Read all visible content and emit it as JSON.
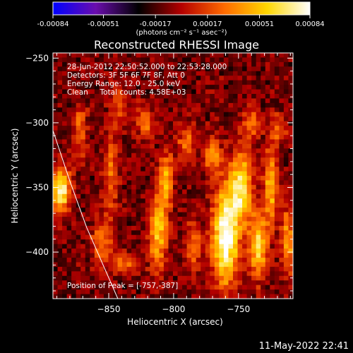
{
  "chart_data": {
    "type": "heatmap",
    "title": "Reconstructed RHESSI Image",
    "xlabel": "Heliocentric X (arcsec)",
    "ylabel": "Heliocentric Y (arcsec)",
    "xlim": [
      -893,
      -708
    ],
    "ylim": [
      -436,
      -246
    ],
    "x_ticks": [
      -850,
      -800,
      -750
    ],
    "y_ticks": [
      -250,
      -300,
      -350,
      -400
    ],
    "colorbar": {
      "range": [
        -0.00084,
        0.00084
      ],
      "tick_values": [
        -0.00084,
        -0.00051,
        -0.00017,
        0.00017,
        0.00051,
        0.00084
      ],
      "tick_labels": [
        "-0.00084",
        "-0.00051",
        "-0.00017",
        "0.00017",
        "0.00051",
        "0.00084"
      ],
      "unit_label": "(photons cm⁻² s⁻¹ asec⁻²)",
      "colormap": [
        "#0000ff",
        "#6a0dad",
        "#000000",
        "#b40000",
        "#ff6a00",
        "#ffd700",
        "#ffffff"
      ]
    },
    "annotations": [
      "28-Jun-2012 22:50:52.000 to 22:53:28.000",
      "Detectors: 3F 5F 6F 7F 8F, Att 0",
      "Energy Range: 12.0 - 25.0 keV",
      "Clean     Total counts: 4.58E+03"
    ],
    "peak_label": "Position of Peak = [-757,-387]",
    "limb_curve": [
      [
        -893,
        -306
      ],
      [
        -880,
        -345
      ],
      [
        -867,
        -381
      ],
      [
        -853,
        -413
      ],
      [
        -843,
        -436
      ]
    ],
    "blobs": [
      {
        "x": -887,
        "y": -352,
        "sx": 5,
        "sy": 12,
        "a": 1.25
      },
      {
        "x": -872,
        "y": -305,
        "sx": 4,
        "sy": 15,
        "a": 0.55
      },
      {
        "x": -842,
        "y": -285,
        "sx": 5,
        "sy": 10,
        "a": 0.45
      },
      {
        "x": -848,
        "y": -340,
        "sx": 4,
        "sy": 22,
        "a": 0.55
      },
      {
        "x": -855,
        "y": -392,
        "sx": 6,
        "sy": 12,
        "a": 0.55
      },
      {
        "x": -838,
        "y": -410,
        "sx": 8,
        "sy": 6,
        "a": 0.5
      },
      {
        "x": -812,
        "y": -385,
        "sx": 5,
        "sy": 20,
        "a": 0.9
      },
      {
        "x": -806,
        "y": -345,
        "sx": 4,
        "sy": 15,
        "a": 0.8
      },
      {
        "x": -822,
        "y": -300,
        "sx": 5,
        "sy": 9,
        "a": 0.55
      },
      {
        "x": -790,
        "y": -315,
        "sx": 5,
        "sy": 10,
        "a": 0.55
      },
      {
        "x": -785,
        "y": -395,
        "sx": 5,
        "sy": 14,
        "a": 0.55
      },
      {
        "x": -760,
        "y": -388,
        "sx": 7,
        "sy": 26,
        "a": 1.45
      },
      {
        "x": -748,
        "y": -350,
        "sx": 6,
        "sy": 20,
        "a": 1.05
      },
      {
        "x": -770,
        "y": -325,
        "sx": 5,
        "sy": 10,
        "a": 0.6
      },
      {
        "x": -735,
        "y": -395,
        "sx": 5,
        "sy": 18,
        "a": 0.95
      },
      {
        "x": -725,
        "y": -350,
        "sx": 4,
        "sy": 20,
        "a": 0.8
      },
      {
        "x": -712,
        "y": -392,
        "sx": 4,
        "sy": 18,
        "a": 0.75
      },
      {
        "x": -740,
        "y": -300,
        "sx": 5,
        "sy": 8,
        "a": 0.55
      },
      {
        "x": -720,
        "y": -305,
        "sx": 5,
        "sy": 8,
        "a": 0.5
      }
    ]
  },
  "footer": {
    "timestamp": "11-May-2022 22:41"
  }
}
